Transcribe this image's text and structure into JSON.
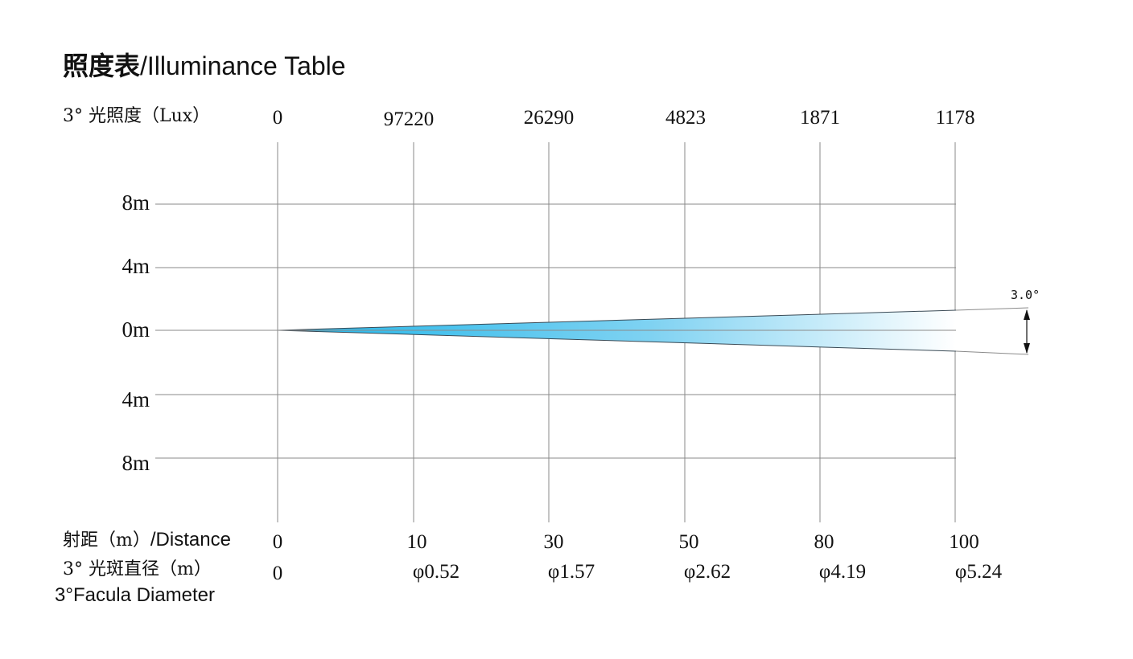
{
  "title": {
    "cn": "照度表",
    "en": "/Illuminance Table"
  },
  "illuminance": {
    "label": "3° 光照度（Lux）",
    "values": [
      "0",
      "97220",
      "26290",
      "4823",
      "1871",
      "1178"
    ]
  },
  "distance": {
    "label_cn": "射距（m）",
    "label_en": "/Distance",
    "values": [
      "0",
      "10",
      "30",
      "50",
      "80",
      "100"
    ]
  },
  "diameter": {
    "label_cn": "3° 光斑直径（m）",
    "label_en": "3°Facula Diameter",
    "values": [
      "0",
      "φ0.52",
      "φ1.57",
      "φ2.62",
      "φ4.19",
      "φ5.24"
    ]
  },
  "y_labels": [
    "8m",
    "4m",
    "0m",
    "4m",
    "8m"
  ],
  "beam_angle": "3.0°",
  "colors": {
    "beam_start": "#1fb6ea",
    "beam_end": "#ffffff",
    "grid": "#8a8a8a"
  }
}
